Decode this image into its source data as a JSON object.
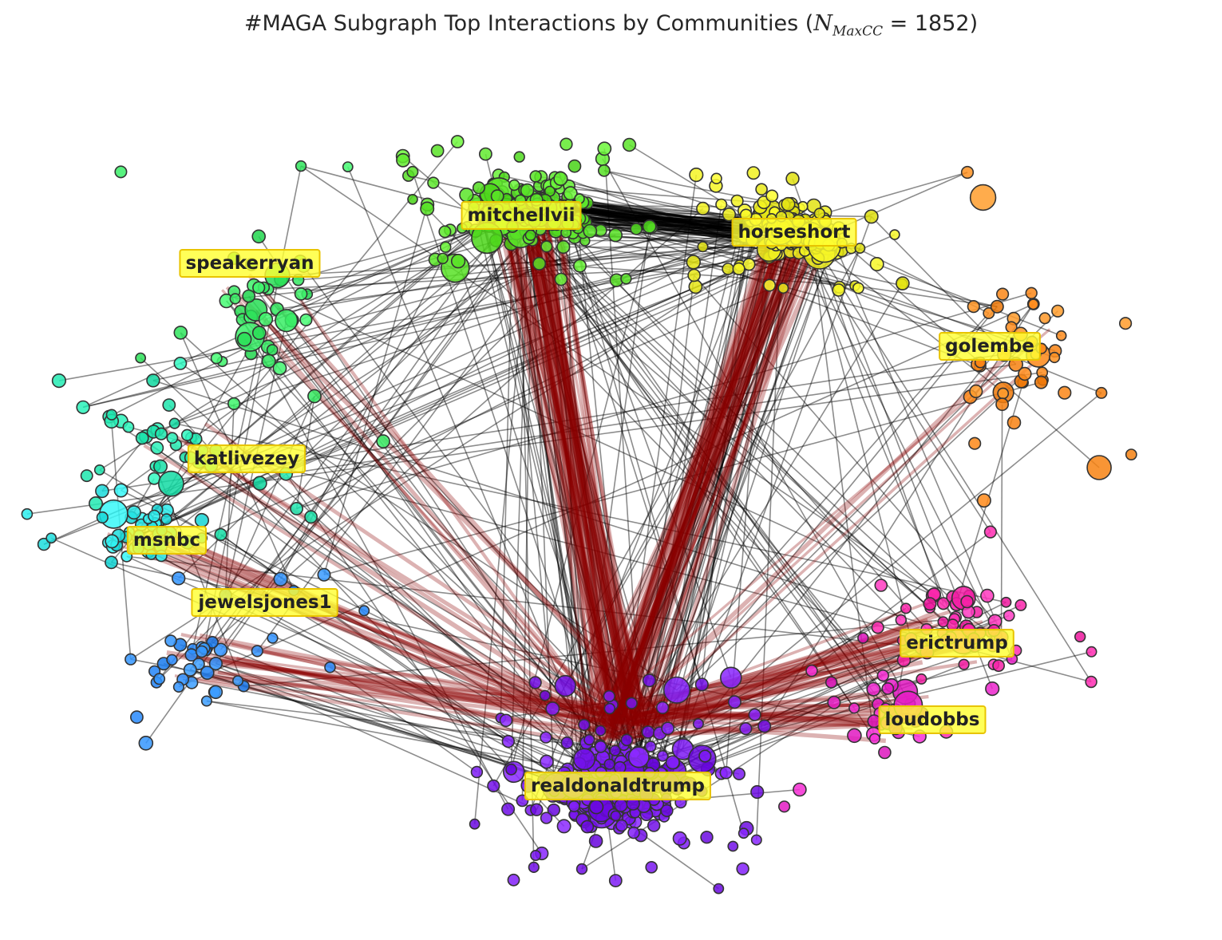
{
  "title": {
    "text": "#MAGA Subgraph Top Interactions by Communities (",
    "math_symbol": "N",
    "math_subscript": "MaxCC",
    "math_value": " = 1852",
    "close": ")"
  },
  "hubs": [
    {
      "id": "mitchellvii",
      "label": "mitchellvii",
      "color": "#5ce62a"
    },
    {
      "id": "horseshort",
      "label": "horseshort",
      "color": "#f0f020"
    },
    {
      "id": "speakerryan",
      "label": "speakerryan",
      "color": "#33e860"
    },
    {
      "id": "golembe",
      "label": "golembe",
      "color": "#ff8a1a"
    },
    {
      "id": "katlivezey",
      "label": "katlivezey",
      "color": "#20e8b0"
    },
    {
      "id": "msnbc",
      "label": "msnbc",
      "color": "#25e5e5"
    },
    {
      "id": "jewelsjones1",
      "label": "jewelsjones1",
      "color": "#2a8cff"
    },
    {
      "id": "erictrump",
      "label": "erictrump",
      "color": "#ff2ab0"
    },
    {
      "id": "loudobbs",
      "label": "loudobbs",
      "color": "#e820c8"
    },
    {
      "id": "realdonaldtrump",
      "label": "realdonaldtrump",
      "color": "#7a18f0"
    }
  ],
  "colors": {
    "strong_edge": "#8b0000",
    "weak_edge": "#000000",
    "node_outline": "#333333",
    "label_fill": "#ffff33",
    "label_border": "#e8c400"
  }
}
